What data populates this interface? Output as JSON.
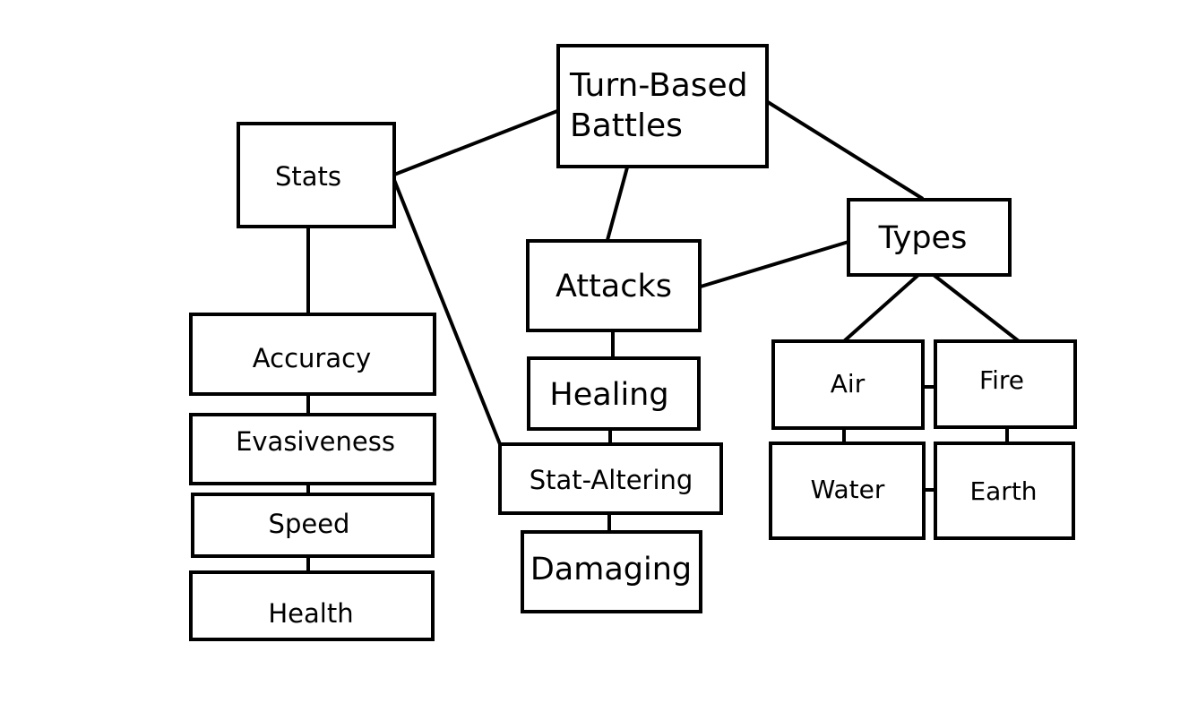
{
  "diagram": {
    "nodes": {
      "root": {
        "lines": [
          "Turn-Based",
          "Battles"
        ]
      },
      "stats": {
        "label": "Stats"
      },
      "attacks": {
        "label": "Attacks"
      },
      "types": {
        "label": "Types"
      },
      "accuracy": {
        "label": "Accuracy"
      },
      "evasiveness": {
        "label": "Evasiveness"
      },
      "speed": {
        "label": "Speed"
      },
      "health": {
        "label": "Health"
      },
      "healing": {
        "label": "Healing"
      },
      "stat_altering": {
        "label": "Stat-Altering"
      },
      "damaging": {
        "label": "Damaging"
      },
      "air": {
        "label": "Air"
      },
      "fire": {
        "label": "Fire"
      },
      "water": {
        "label": "Water"
      },
      "earth": {
        "label": "Earth"
      }
    },
    "edges": [
      [
        "root",
        "stats"
      ],
      [
        "root",
        "attacks"
      ],
      [
        "root",
        "types"
      ],
      [
        "stats",
        "accuracy"
      ],
      [
        "stats",
        "stat_altering"
      ],
      [
        "accuracy",
        "evasiveness"
      ],
      [
        "evasiveness",
        "speed"
      ],
      [
        "speed",
        "health"
      ],
      [
        "attacks",
        "types"
      ],
      [
        "attacks",
        "healing"
      ],
      [
        "healing",
        "stat_altering"
      ],
      [
        "stat_altering",
        "damaging"
      ],
      [
        "types",
        "air"
      ],
      [
        "types",
        "fire"
      ],
      [
        "air",
        "fire"
      ],
      [
        "air",
        "water"
      ],
      [
        "fire",
        "earth"
      ],
      [
        "water",
        "earth"
      ]
    ]
  }
}
